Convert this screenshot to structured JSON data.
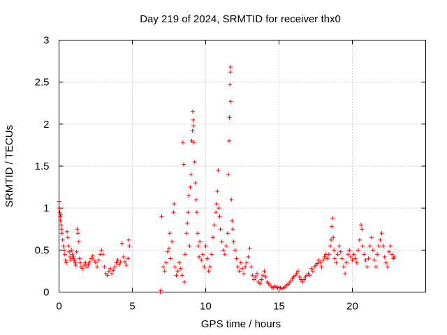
{
  "chart_data": {
    "type": "scatter",
    "title": "Day 219 of 2024, SRMTID for receiver thx0",
    "xlabel": "GPS time / hours",
    "ylabel": "SRMTID / TECUs",
    "xlim": [
      0,
      25
    ],
    "ylim": [
      0,
      3
    ],
    "xticks": [
      "0",
      "5",
      "10",
      "15",
      "20"
    ],
    "yticks": [
      "0",
      "0.5",
      "1",
      "1.5",
      "2",
      "2.5",
      "3"
    ],
    "grid": true,
    "marker": "plus",
    "color": "#ff0000",
    "series": [
      {
        "name": "SRMTID",
        "points": [
          [
            0.0,
            1.08
          ],
          [
            0.02,
            1.0
          ],
          [
            0.05,
            0.95
          ],
          [
            0.08,
            0.9
          ],
          [
            0.1,
            0.85
          ],
          [
            0.12,
            0.92
          ],
          [
            0.15,
            0.8
          ],
          [
            0.18,
            0.75
          ],
          [
            0.2,
            0.7
          ],
          [
            0.25,
            0.62
          ],
          [
            0.3,
            0.55
          ],
          [
            0.35,
            0.5
          ],
          [
            0.4,
            0.45
          ],
          [
            0.45,
            0.38
          ],
          [
            0.5,
            0.35
          ],
          [
            0.55,
            0.72
          ],
          [
            0.6,
            0.65
          ],
          [
            0.65,
            0.55
          ],
          [
            0.7,
            0.48
          ],
          [
            0.75,
            0.42
          ],
          [
            0.8,
            0.38
          ],
          [
            0.85,
            0.5
          ],
          [
            0.9,
            0.45
          ],
          [
            0.95,
            0.4
          ],
          [
            1.0,
            0.42
          ],
          [
            1.05,
            0.38
          ],
          [
            1.1,
            0.35
          ],
          [
            1.15,
            0.32
          ],
          [
            1.2,
            0.48
          ],
          [
            1.25,
            0.75
          ],
          [
            1.3,
            0.7
          ],
          [
            1.35,
            0.6
          ],
          [
            1.4,
            0.4
          ],
          [
            1.45,
            0.35
          ],
          [
            1.5,
            0.3
          ],
          [
            1.6,
            0.28
          ],
          [
            1.7,
            0.32
          ],
          [
            1.8,
            0.35
          ],
          [
            1.9,
            0.3
          ],
          [
            2.0,
            0.33
          ],
          [
            2.1,
            0.36
          ],
          [
            2.2,
            0.4
          ],
          [
            2.3,
            0.43
          ],
          [
            2.4,
            0.38
          ],
          [
            2.5,
            0.35
          ],
          [
            2.6,
            0.3
          ],
          [
            2.7,
            0.38
          ],
          [
            2.8,
            0.45
          ],
          [
            2.9,
            0.5
          ],
          [
            3.0,
            0.45
          ],
          [
            3.1,
            0.3
          ],
          [
            3.2,
            0.22
          ],
          [
            3.3,
            0.2
          ],
          [
            3.4,
            0.25
          ],
          [
            3.5,
            0.28
          ],
          [
            3.6,
            0.22
          ],
          [
            3.7,
            0.26
          ],
          [
            3.8,
            0.3
          ],
          [
            3.9,
            0.35
          ],
          [
            4.0,
            0.38
          ],
          [
            4.1,
            0.33
          ],
          [
            4.2,
            0.36
          ],
          [
            4.3,
            0.58
          ],
          [
            4.4,
            0.42
          ],
          [
            4.5,
            0.36
          ],
          [
            4.6,
            0.32
          ],
          [
            4.7,
            0.4
          ],
          [
            4.75,
            0.62
          ],
          [
            4.8,
            0.55
          ],
          [
            6.9,
            0.0
          ],
          [
            6.95,
            0.02
          ],
          [
            7.0,
            0.9
          ],
          [
            7.1,
            0.3
          ],
          [
            7.2,
            0.25
          ],
          [
            7.3,
            0.35
          ],
          [
            7.4,
            0.48
          ],
          [
            7.5,
            0.52
          ],
          [
            7.55,
            0.7
          ],
          [
            7.6,
            0.4
          ],
          [
            7.7,
            0.6
          ],
          [
            7.8,
            0.95
          ],
          [
            7.85,
            1.05
          ],
          [
            7.9,
            0.3
          ],
          [
            8.0,
            0.2
          ],
          [
            8.1,
            0.25
          ],
          [
            8.2,
            0.35
          ],
          [
            8.3,
            0.28
          ],
          [
            8.4,
            0.2
          ],
          [
            8.45,
            1.78
          ],
          [
            8.5,
            1.52
          ],
          [
            8.55,
            0.12
          ],
          [
            8.6,
            0.45
          ],
          [
            8.7,
            0.7
          ],
          [
            8.75,
            0.82
          ],
          [
            8.8,
            0.95
          ],
          [
            8.85,
            1.15
          ],
          [
            8.9,
            0.55
          ],
          [
            8.95,
            1.25
          ],
          [
            9.0,
            1.4
          ],
          [
            9.05,
            1.8
          ],
          [
            9.1,
            1.92
          ],
          [
            9.12,
            2.15
          ],
          [
            9.15,
            2.05
          ],
          [
            9.18,
            1.98
          ],
          [
            9.2,
            1.78
          ],
          [
            9.25,
            1.55
          ],
          [
            9.3,
            1.3
          ],
          [
            9.35,
            1.1
          ],
          [
            9.4,
            0.95
          ],
          [
            9.45,
            0.7
          ],
          [
            9.5,
            0.55
          ],
          [
            9.55,
            0.42
          ],
          [
            9.6,
            0.6
          ],
          [
            9.7,
            0.38
          ],
          [
            9.8,
            0.45
          ],
          [
            9.9,
            0.3
          ],
          [
            10.0,
            0.55
          ],
          [
            10.1,
            0.4
          ],
          [
            10.2,
            0.25
          ],
          [
            10.3,
            0.3
          ],
          [
            10.4,
            0.45
          ],
          [
            10.5,
            0.65
          ],
          [
            10.6,
            0.8
          ],
          [
            10.7,
            0.95
          ],
          [
            10.75,
            1.05
          ],
          [
            10.8,
            1.2
          ],
          [
            10.85,
            1.45
          ],
          [
            10.9,
            1.0
          ],
          [
            10.95,
            0.9
          ],
          [
            11.0,
            0.75
          ],
          [
            11.1,
            0.6
          ],
          [
            11.2,
            0.5
          ],
          [
            11.3,
            0.45
          ],
          [
            11.4,
            0.55
          ],
          [
            11.5,
            0.7
          ],
          [
            11.55,
            1.4
          ],
          [
            11.6,
            1.8
          ],
          [
            11.62,
            2.08
          ],
          [
            11.65,
            2.47
          ],
          [
            11.68,
            2.62
          ],
          [
            11.7,
            2.68
          ],
          [
            11.72,
            2.27
          ],
          [
            11.75,
            1.1
          ],
          [
            11.8,
            0.85
          ],
          [
            11.85,
            0.75
          ],
          [
            11.9,
            0.6
          ],
          [
            12.0,
            0.5
          ],
          [
            12.1,
            0.4
          ],
          [
            12.2,
            0.3
          ],
          [
            12.3,
            0.25
          ],
          [
            12.4,
            0.35
          ],
          [
            12.5,
            0.28
          ],
          [
            12.6,
            0.22
          ],
          [
            12.7,
            0.3
          ],
          [
            12.8,
            0.35
          ],
          [
            12.9,
            0.42
          ],
          [
            13.0,
            0.52
          ],
          [
            13.1,
            0.3
          ],
          [
            13.2,
            0.2
          ],
          [
            13.3,
            0.15
          ],
          [
            13.4,
            0.18
          ],
          [
            13.5,
            0.22
          ],
          [
            13.6,
            0.12
          ],
          [
            13.7,
            0.1
          ],
          [
            13.8,
            0.15
          ],
          [
            13.9,
            0.2
          ],
          [
            14.0,
            0.25
          ],
          [
            14.1,
            0.18
          ],
          [
            14.2,
            0.12
          ],
          [
            14.3,
            0.1
          ],
          [
            14.4,
            0.08
          ],
          [
            14.5,
            0.06
          ],
          [
            14.6,
            0.05
          ],
          [
            14.7,
            0.07
          ],
          [
            14.8,
            0.06
          ],
          [
            14.9,
            0.05
          ],
          [
            15.0,
            0.06
          ],
          [
            15.1,
            0.05
          ],
          [
            15.2,
            0.04
          ],
          [
            15.3,
            0.05
          ],
          [
            15.4,
            0.06
          ],
          [
            15.5,
            0.08
          ],
          [
            15.6,
            0.09
          ],
          [
            15.7,
            0.11
          ],
          [
            15.8,
            0.13
          ],
          [
            15.9,
            0.16
          ],
          [
            16.0,
            0.18
          ],
          [
            16.1,
            0.2
          ],
          [
            16.2,
            0.22
          ],
          [
            16.3,
            0.25
          ],
          [
            16.4,
            0.18
          ],
          [
            16.5,
            0.15
          ],
          [
            16.6,
            0.12
          ],
          [
            16.7,
            0.15
          ],
          [
            16.8,
            0.18
          ],
          [
            16.9,
            0.2
          ],
          [
            17.0,
            0.22
          ],
          [
            17.1,
            0.2
          ],
          [
            17.2,
            0.28
          ],
          [
            17.3,
            0.25
          ],
          [
            17.4,
            0.3
          ],
          [
            17.5,
            0.32
          ],
          [
            17.6,
            0.34
          ],
          [
            17.7,
            0.38
          ],
          [
            17.8,
            0.35
          ],
          [
            17.9,
            0.3
          ],
          [
            18.0,
            0.38
          ],
          [
            18.1,
            0.42
          ],
          [
            18.2,
            0.45
          ],
          [
            18.3,
            0.4
          ],
          [
            18.4,
            0.45
          ],
          [
            18.5,
            0.55
          ],
          [
            18.55,
            0.62
          ],
          [
            18.6,
            0.78
          ],
          [
            18.65,
            0.88
          ],
          [
            18.7,
            0.65
          ],
          [
            18.75,
            0.5
          ],
          [
            18.8,
            0.4
          ],
          [
            18.9,
            0.35
          ],
          [
            19.0,
            0.45
          ],
          [
            19.1,
            0.55
          ],
          [
            19.2,
            0.48
          ],
          [
            19.3,
            0.4
          ],
          [
            19.4,
            0.3
          ],
          [
            19.5,
            0.22
          ],
          [
            19.6,
            0.35
          ],
          [
            19.7,
            0.45
          ],
          [
            19.8,
            0.5
          ],
          [
            19.9,
            0.42
          ],
          [
            20.0,
            0.38
          ],
          [
            20.1,
            0.45
          ],
          [
            20.2,
            0.4
          ],
          [
            20.3,
            0.35
          ],
          [
            20.4,
            0.5
          ],
          [
            20.5,
            0.62
          ],
          [
            20.6,
            0.8
          ],
          [
            20.65,
            0.75
          ],
          [
            20.7,
            0.55
          ],
          [
            20.8,
            0.45
          ],
          [
            20.9,
            0.38
          ],
          [
            21.0,
            0.3
          ],
          [
            21.1,
            0.4
          ],
          [
            21.2,
            0.55
          ],
          [
            21.3,
            0.65
          ],
          [
            21.4,
            0.5
          ],
          [
            21.5,
            0.38
          ],
          [
            21.6,
            0.3
          ],
          [
            21.7,
            0.45
          ],
          [
            21.8,
            0.55
          ],
          [
            21.9,
            0.62
          ],
          [
            22.0,
            0.7
          ],
          [
            22.1,
            0.55
          ],
          [
            22.2,
            0.42
          ],
          [
            22.3,
            0.35
          ],
          [
            22.4,
            0.3
          ],
          [
            22.5,
            0.48
          ],
          [
            22.6,
            0.55
          ],
          [
            22.7,
            0.45
          ],
          [
            22.8,
            0.4
          ],
          [
            22.85,
            0.42
          ]
        ]
      }
    ]
  }
}
